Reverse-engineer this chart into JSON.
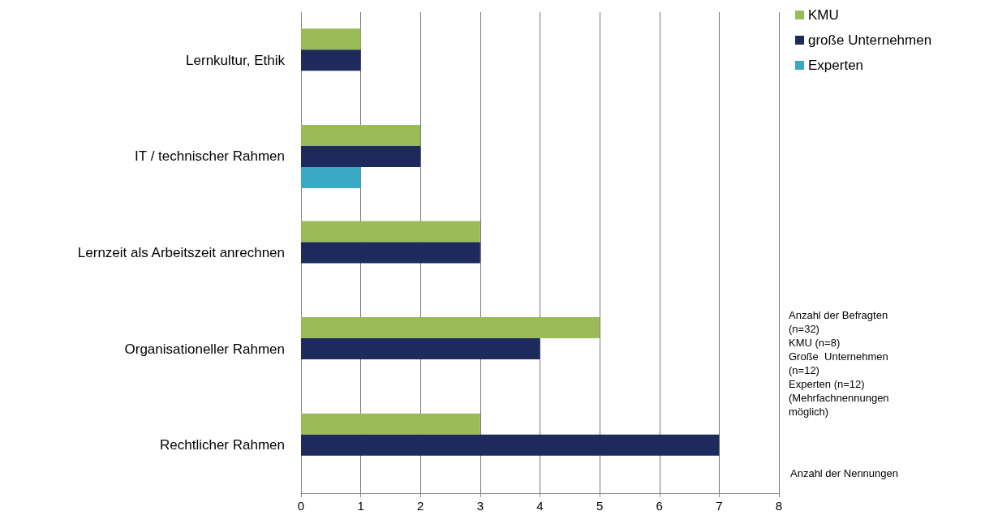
{
  "chart_data": {
    "type": "bar",
    "orientation": "horizontal",
    "categories": [
      "Lernkultur, Ethik",
      "IT / technischer Rahmen",
      "Lernzeit als Arbeitszeit anrechnen",
      "Organisationeller Rahmen",
      "Rechtlicher Rahmen"
    ],
    "series": [
      {
        "name": "KMU",
        "color": "#9bbb59",
        "values": [
          1,
          2,
          3,
          5,
          3
        ]
      },
      {
        "name": "große Unternehmen",
        "color": "#1f2a5c",
        "values": [
          1,
          2,
          3,
          4,
          7
        ]
      },
      {
        "name": "Experten",
        "color": "#3aa9c4",
        "values": [
          null,
          1,
          null,
          null,
          null
        ]
      }
    ],
    "xlim": [
      0,
      8
    ],
    "xticks": [
      0,
      1,
      2,
      3,
      4,
      5,
      6,
      7,
      8
    ],
    "xlabel": "Anzahl der Nennungen",
    "annotations": [
      "Anzahl der Befragten (n=32)",
      "KMU (n=8)",
      "Große  Unternehmen (n=12)",
      "Experten (n=12)",
      "(Mehrfachnennungen möglich)"
    ],
    "grid": "x",
    "legend": "top right"
  }
}
